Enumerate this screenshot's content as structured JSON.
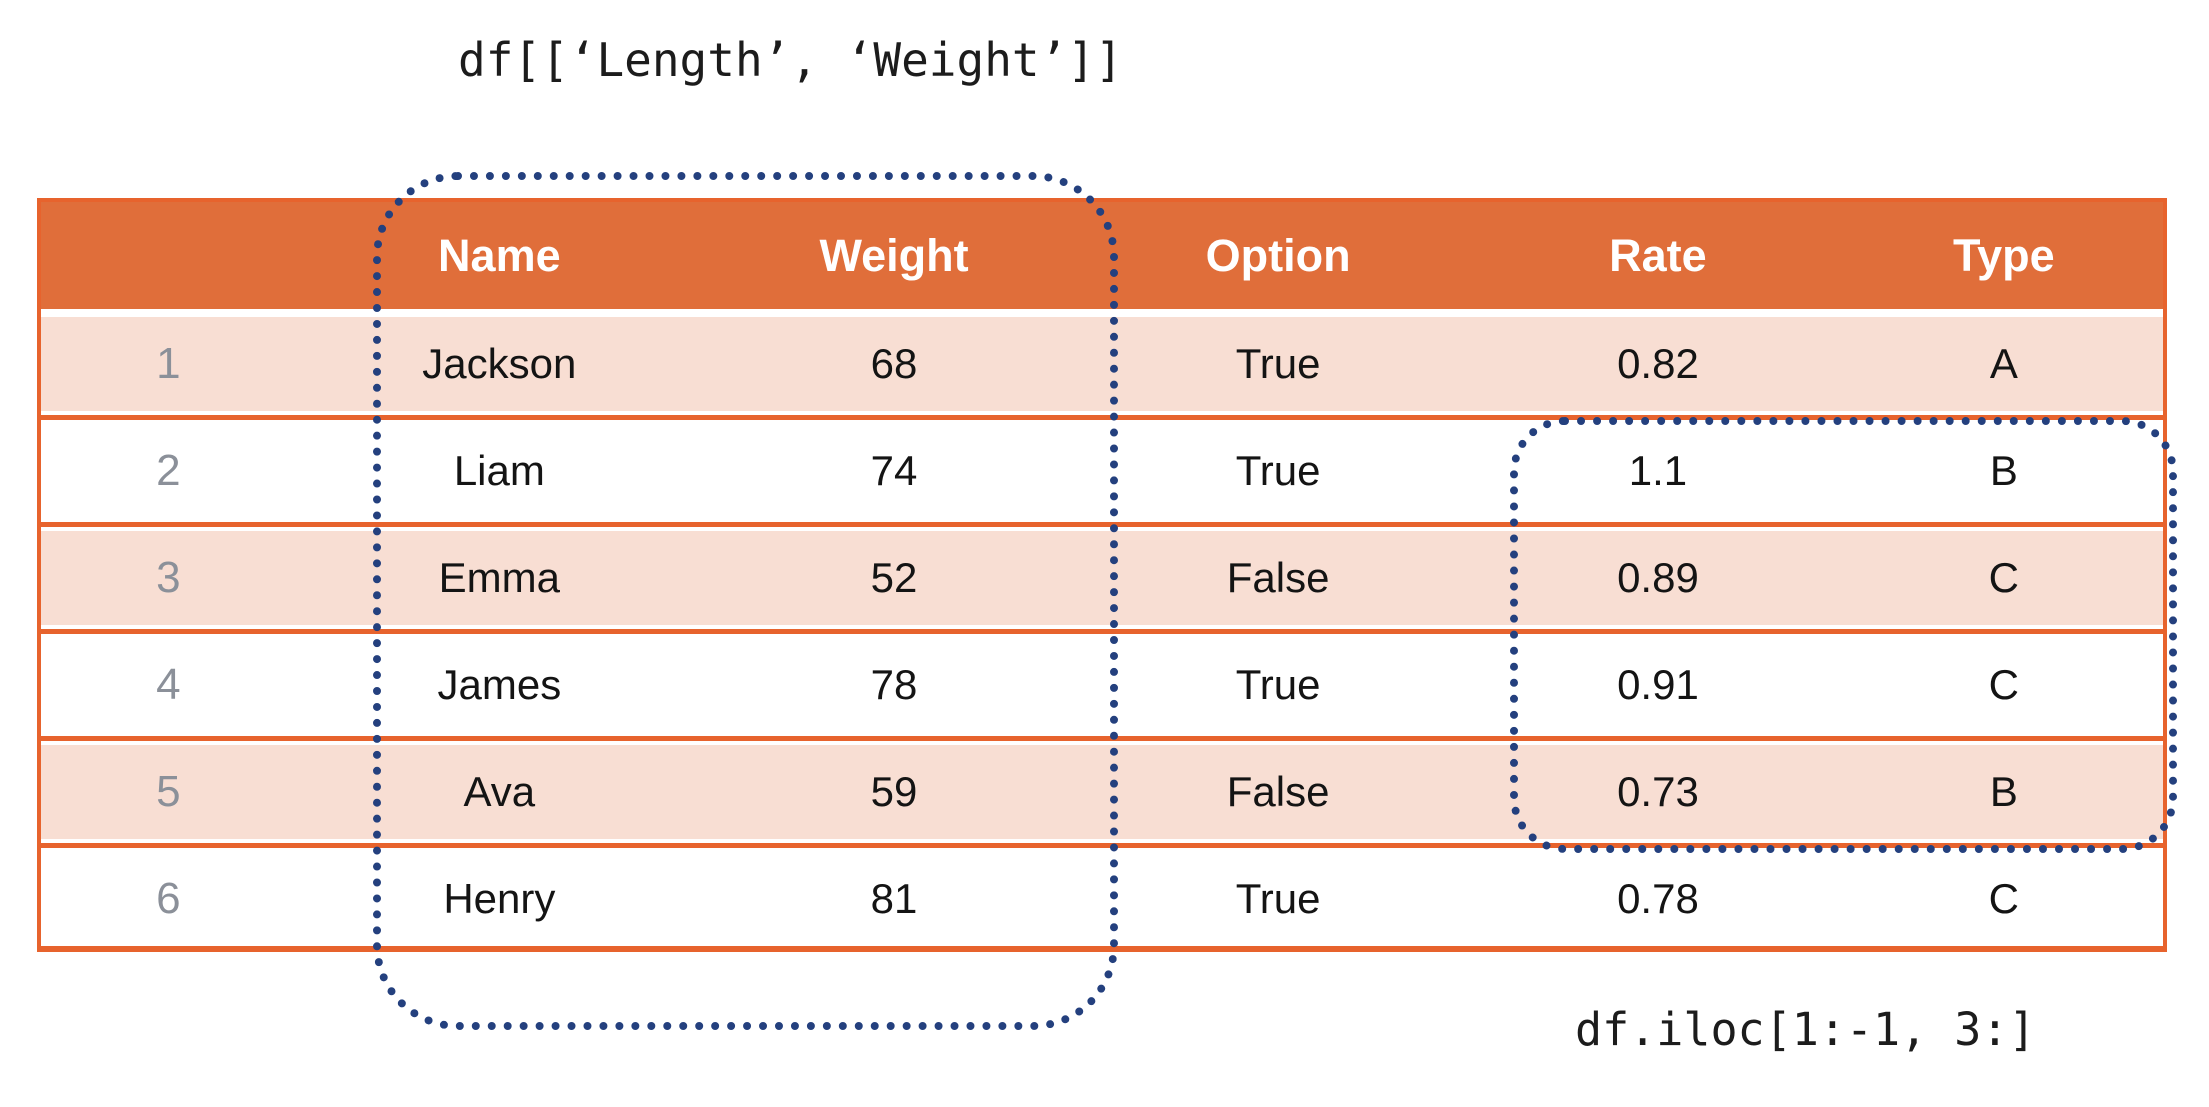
{
  "annotations": {
    "top_code": "df[[‘Length’, ‘Weight’]]",
    "bottom_code": "df.iloc[1:-1, 3:]"
  },
  "table": {
    "index_header": "",
    "columns": [
      "Name",
      "Weight",
      "Option",
      "Rate",
      "Type"
    ],
    "rows": [
      {
        "index": "1",
        "cells": [
          "Jackson",
          "68",
          "True",
          "0.82",
          "A"
        ]
      },
      {
        "index": "2",
        "cells": [
          "Liam",
          "74",
          "True",
          "1.1",
          "B"
        ]
      },
      {
        "index": "3",
        "cells": [
          "Emma",
          "52",
          "False",
          "0.89",
          "C"
        ]
      },
      {
        "index": "4",
        "cells": [
          "James",
          "78",
          "True",
          "0.91",
          "C"
        ]
      },
      {
        "index": "5",
        "cells": [
          "Ava",
          "59",
          "False",
          "0.73",
          "B"
        ]
      },
      {
        "index": "6",
        "cells": [
          "Henry",
          "81",
          "True",
          "0.78",
          "C"
        ]
      }
    ]
  },
  "selections": {
    "columns_outline_label": "df[[‘Length’, ‘Weight’]]",
    "iloc_outline_label": "df.iloc[1:-1, 3:]"
  },
  "colors": {
    "header_bg": "#e06e3a",
    "header_text": "#ffffff",
    "row_stripe": "#f8ded3",
    "row_plain": "#ffffff",
    "grid_line": "#e7632d",
    "selection_dotted": "#24407e",
    "index_text": "#8b9099",
    "cell_text": "#141414"
  }
}
